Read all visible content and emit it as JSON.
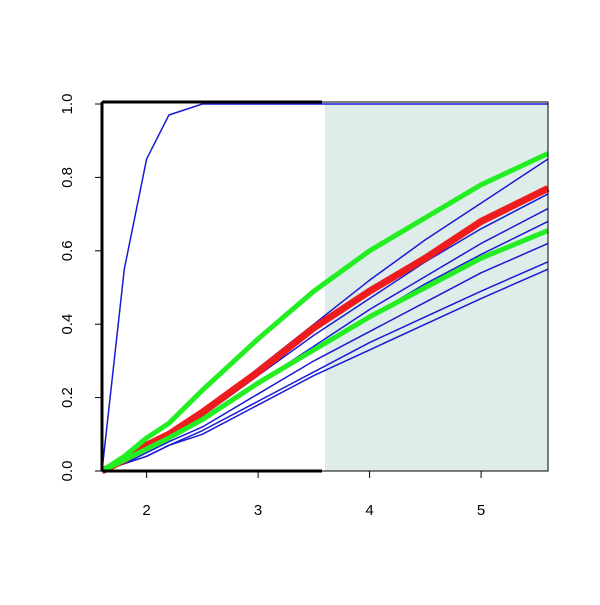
{
  "chart_data": {
    "type": "line",
    "x": [
      1.6,
      1.8,
      2,
      2.2,
      2.5,
      3,
      3.5,
      4,
      4.5,
      5,
      5.6
    ],
    "series": [
      {
        "color": "#1a1ad6",
        "width": 1.5,
        "values": [
          0,
          0.55,
          0.85,
          0.97,
          1,
          1,
          1,
          1,
          1,
          1,
          1
        ]
      },
      {
        "color": "#1a1ad6",
        "width": 1.5,
        "values": [
          0,
          0.02,
          0.04,
          0.07,
          0.1,
          0.18,
          0.26,
          0.33,
          0.4,
          0.47,
          0.55
        ]
      },
      {
        "color": "#1a1ad6",
        "width": 1.5,
        "values": [
          0,
          0.02,
          0.04,
          0.07,
          0.11,
          0.19,
          0.27,
          0.35,
          0.42,
          0.49,
          0.57
        ]
      },
      {
        "color": "#1a1ad6",
        "width": 1.5,
        "values": [
          0,
          0.02,
          0.05,
          0.08,
          0.12,
          0.21,
          0.3,
          0.38,
          0.46,
          0.54,
          0.62
        ]
      },
      {
        "color": "#1a1ad6",
        "width": 1.5,
        "values": [
          0,
          0.03,
          0.06,
          0.09,
          0.14,
          0.24,
          0.33,
          0.42,
          0.51,
          0.59,
          0.68
        ]
      },
      {
        "color": "#1a1ad6",
        "width": 1.5,
        "values": [
          0,
          0.03,
          0.06,
          0.09,
          0.14,
          0.24,
          0.34,
          0.44,
          0.53,
          0.62,
          0.715
        ]
      },
      {
        "color": "#1a1ad6",
        "width": 1.5,
        "values": [
          0,
          0.03,
          0.06,
          0.09,
          0.15,
          0.26,
          0.37,
          0.47,
          0.57,
          0.66,
          0.755
        ]
      },
      {
        "color": "#1a1ad6",
        "width": 1.5,
        "values": [
          0,
          0.03,
          0.07,
          0.1,
          0.16,
          0.28,
          0.4,
          0.52,
          0.63,
          0.73,
          0.85
        ]
      },
      {
        "color": "#ee1c1c",
        "width": 7,
        "values": [
          0,
          0.03,
          0.07,
          0.1,
          0.16,
          0.27,
          0.39,
          0.49,
          0.58,
          0.68,
          0.77
        ]
      },
      {
        "color": "#22ee22",
        "width": 5,
        "values": [
          0,
          0.03,
          0.06,
          0.09,
          0.14,
          0.24,
          0.33,
          0.42,
          0.5,
          0.58,
          0.655
        ]
      },
      {
        "color": "#22ee22",
        "width": 5,
        "values": [
          0,
          0.04,
          0.09,
          0.13,
          0.22,
          0.36,
          0.49,
          0.6,
          0.69,
          0.78,
          0.865
        ]
      }
    ],
    "highlight_x": [
      3.6,
      5.6
    ],
    "highlight_color": "#deecea",
    "xlim": [
      1.6,
      5.6
    ],
    "ylim": [
      0,
      1
    ],
    "xticks": [
      2,
      3,
      4,
      5
    ],
    "yticks": [
      {
        "value": 0,
        "label": "0.0"
      },
      0.2,
      0.4,
      0.6,
      0.8,
      {
        "value": 1,
        "label": "1.0"
      }
    ]
  }
}
